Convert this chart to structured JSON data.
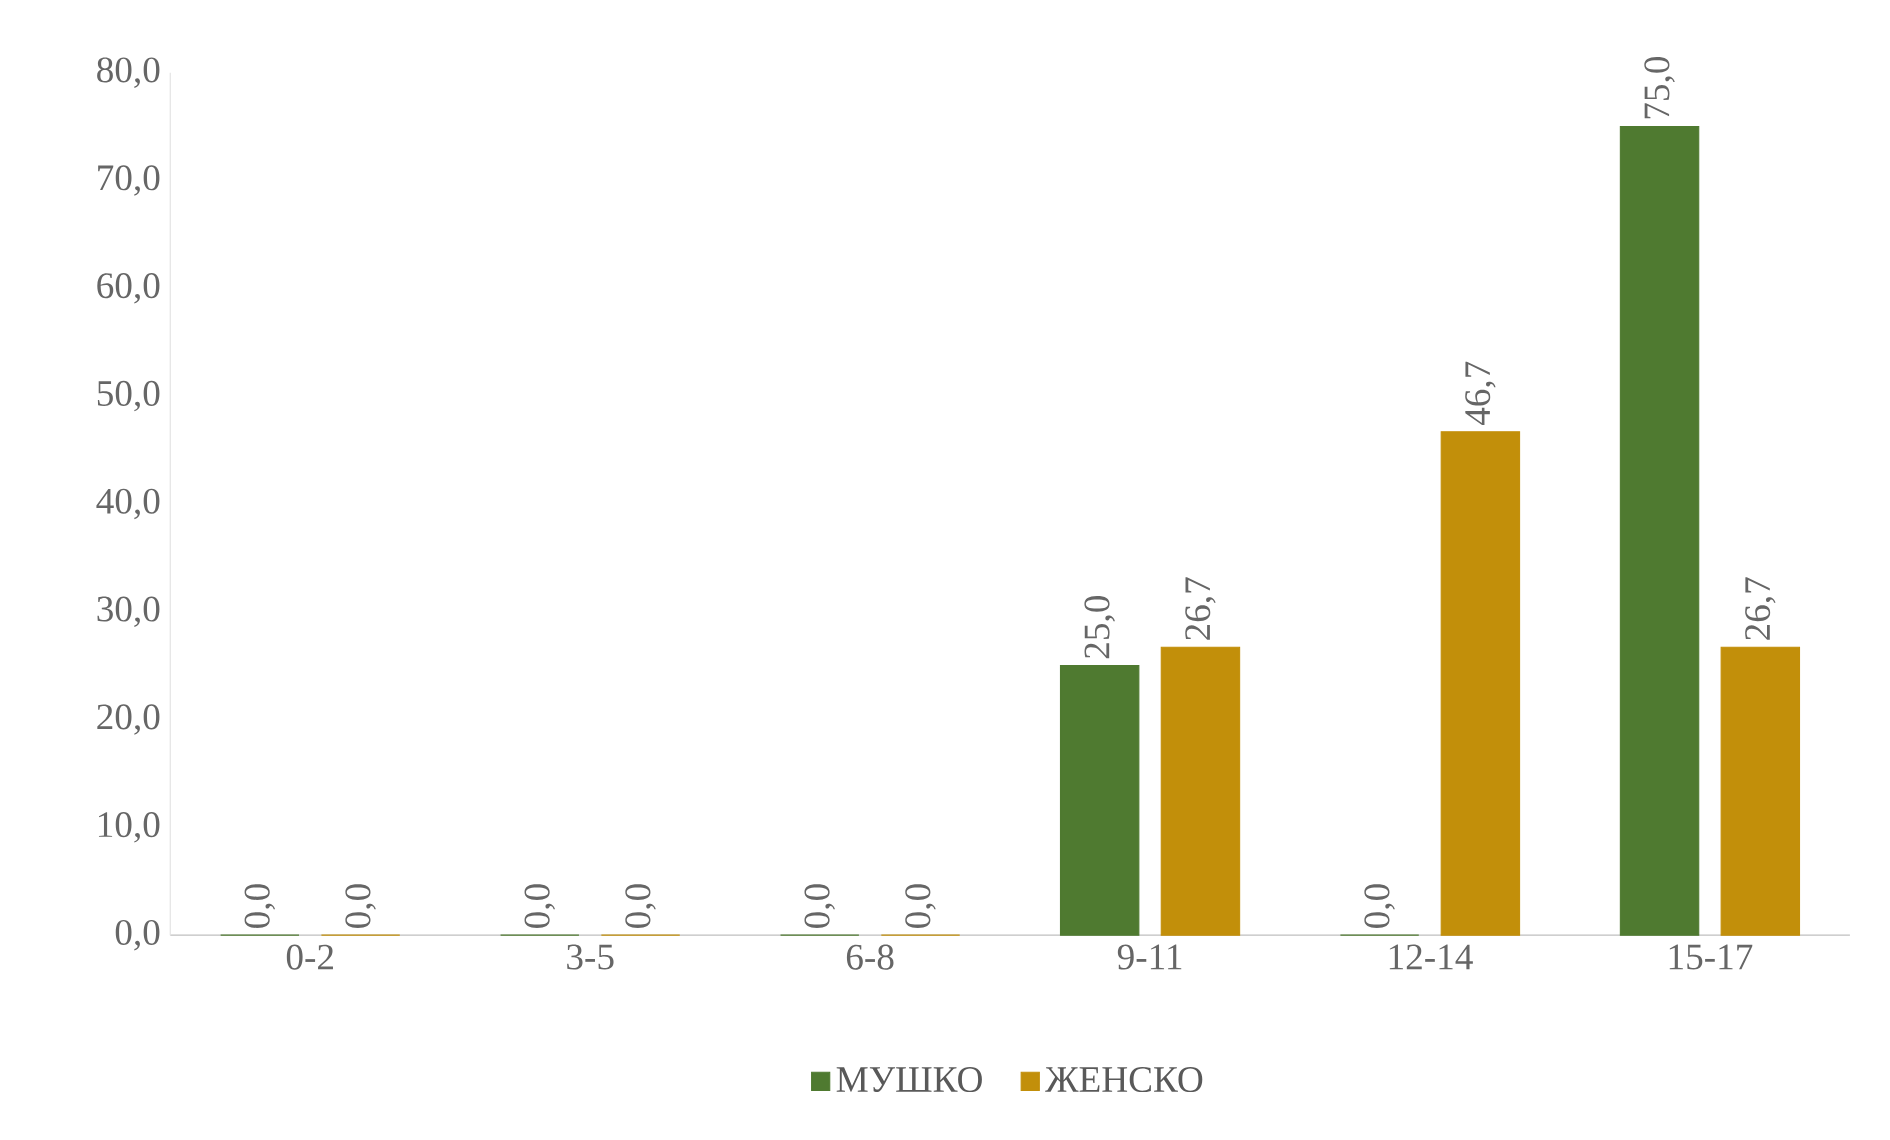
{
  "chart_data": {
    "type": "bar",
    "categories": [
      "0-2",
      "3-5",
      "6-8",
      "9-11",
      "12-14",
      "15-17"
    ],
    "series": [
      {
        "name": "МУШКО",
        "color": "#4f7a30",
        "values": [
          0,
          0,
          0,
          25.0,
          0,
          75.0
        ],
        "value_labels": [
          "0,0",
          "0,0",
          "0,0",
          "25,0",
          "0,0",
          "75,0"
        ]
      },
      {
        "name": "ЖЕНСКО",
        "color": "#c28f0a",
        "values": [
          0,
          0,
          0,
          26.7,
          46.7,
          26.7
        ],
        "value_labels": [
          "0,0",
          "0,0",
          "0,0",
          "26,7",
          "46,7",
          "26,7"
        ]
      }
    ],
    "ylim": [
      0,
      80
    ],
    "yticks": [
      {
        "value": 0,
        "label": "0,0"
      },
      {
        "value": 10,
        "label": "10,0"
      },
      {
        "value": 20,
        "label": "20,0"
      },
      {
        "value": 30,
        "label": "30,0"
      },
      {
        "value": 40,
        "label": "40,0"
      },
      {
        "value": 50,
        "label": "50,0"
      },
      {
        "value": 60,
        "label": "60,0"
      },
      {
        "value": 70,
        "label": "70,0"
      },
      {
        "value": 80,
        "label": "80,0"
      }
    ],
    "legend": "bottom",
    "grid": false
  }
}
